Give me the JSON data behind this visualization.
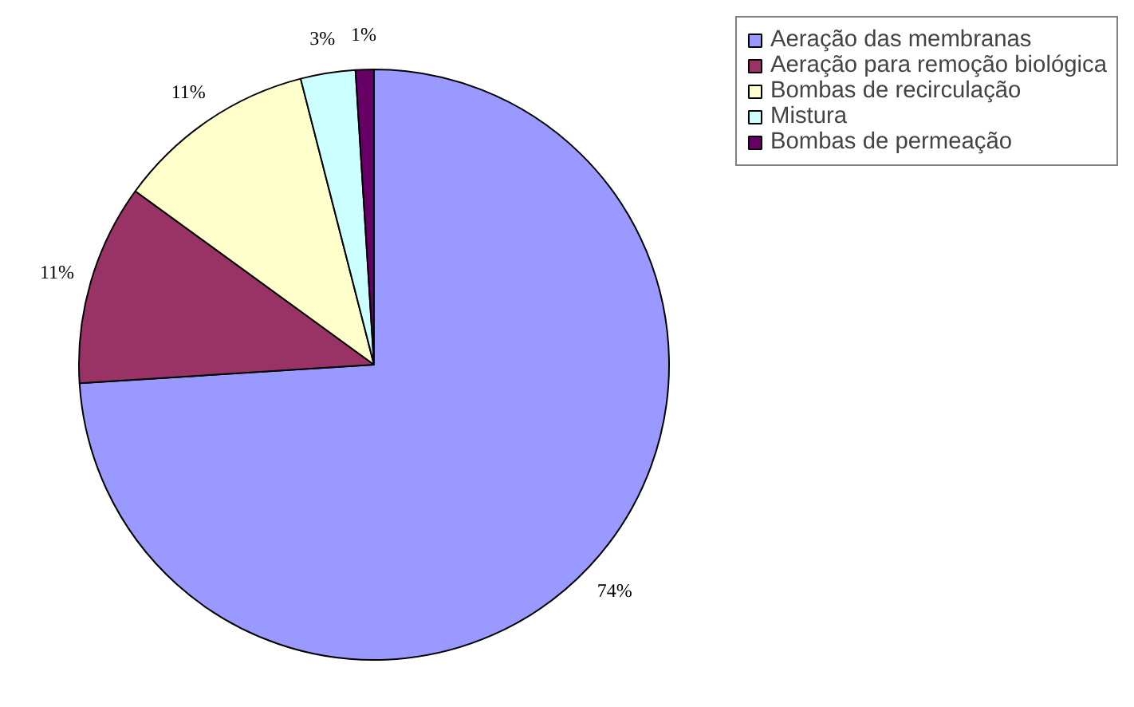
{
  "chart_data": {
    "type": "pie",
    "categories": [
      "Aeração das membranas",
      "Aeração para remoção biológica",
      "Bombas de recirculação",
      "Mistura",
      "Bombas de permeação"
    ],
    "values": [
      74,
      11,
      11,
      3,
      1
    ],
    "colors": [
      "#9999ff",
      "#993366",
      "#ffffcc",
      "#ccffff",
      "#660066"
    ],
    "value_labels": [
      "74%",
      "11%",
      "11%",
      "3%",
      "1%"
    ],
    "legend": "top right"
  }
}
